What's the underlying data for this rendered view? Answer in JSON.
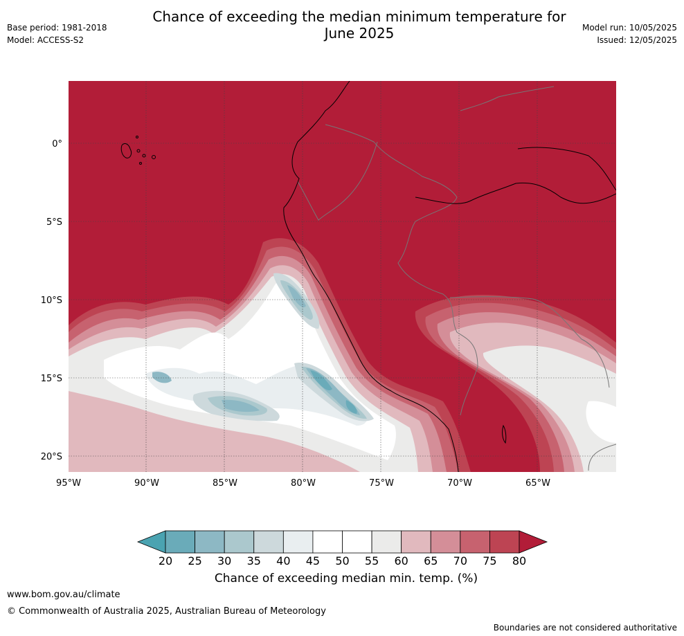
{
  "header": {
    "title_line1": "Chance of exceeding the median minimum temperature for",
    "title_line2": "June 2025",
    "base_period": "Base period: 1981-2018",
    "model": "Model: ACCESS-S2",
    "model_run": "Model run: 10/05/2025",
    "issued": "Issued: 12/05/2025"
  },
  "map": {
    "lat_labels": [
      "0°",
      "5°S",
      "10°S",
      "15°S",
      "20°S"
    ],
    "lon_labels": [
      "95°W",
      "90°W",
      "85°W",
      "80°W",
      "75°W",
      "70°W",
      "65°W"
    ],
    "gridlines": true
  },
  "colorbar": {
    "ticks": [
      "20",
      "25",
      "30",
      "35",
      "40",
      "45",
      "50",
      "55",
      "60",
      "65",
      "70",
      "75",
      "80"
    ],
    "colors": [
      "#4aa3b1",
      "#6aabb9",
      "#8db8c4",
      "#abc8cd",
      "#cdd9dc",
      "#e9eef0",
      "#ffffff",
      "#ffffff",
      "#ebebea",
      "#e1b9be",
      "#d48e98",
      "#c7626f",
      "#bd4453",
      "#b21d38"
    ],
    "label": "Chance of exceeding median min. temp. (%)"
  },
  "footer": {
    "url": "www.bom.gov.au/climate",
    "copyright": "© Commonwealth of Australia 2025, Australian Bureau of Meteorology",
    "disclaimer": "Boundaries are not considered authoritative"
  }
}
